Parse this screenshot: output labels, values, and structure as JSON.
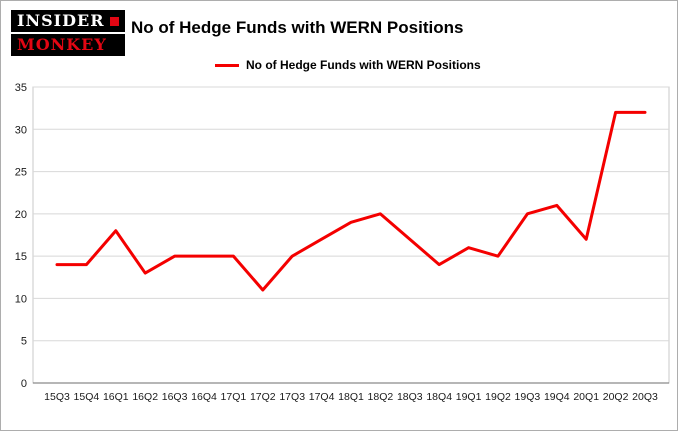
{
  "header": {
    "logo_line1": "INSIDER",
    "logo_line2": "MONKEY",
    "title": "No of Hedge Funds with WERN Positions",
    "legend_label": "No of Hedge Funds with WERN Positions"
  },
  "colors": {
    "line": "#f40000",
    "logo_accent": "#e20613",
    "grid": "#d8d8d8",
    "axis": "#6e6e6e",
    "plot_frame": "#c9c9c9",
    "text": "#1a1a1a"
  },
  "chart_data": {
    "type": "line",
    "title": "No of Hedge Funds with WERN Positions",
    "series_name": "No of Hedge Funds with WERN Positions",
    "categories": [
      "15Q3",
      "15Q4",
      "16Q1",
      "16Q2",
      "16Q3",
      "16Q4",
      "17Q1",
      "17Q2",
      "17Q3",
      "17Q4",
      "18Q1",
      "18Q2",
      "18Q3",
      "18Q4",
      "19Q1",
      "19Q2",
      "19Q3",
      "19Q4",
      "20Q1",
      "20Q2",
      "20Q3"
    ],
    "values": [
      14,
      14,
      18,
      13,
      15,
      15,
      15,
      11,
      15,
      17,
      19,
      20,
      17,
      14,
      16,
      15,
      20,
      21,
      17,
      32,
      32
    ],
    "xlabel": "",
    "ylabel": "",
    "ylim": [
      0,
      35
    ],
    "yticks": [
      0,
      5,
      10,
      15,
      20,
      25,
      30,
      35
    ],
    "grid": true,
    "legend_position": "top-left",
    "line_width": 3
  }
}
